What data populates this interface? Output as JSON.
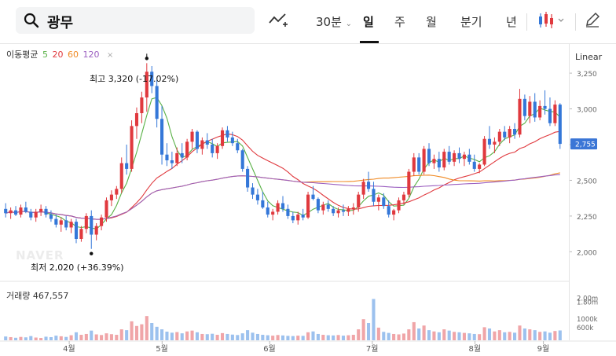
{
  "search": {
    "query": "광무"
  },
  "periods": [
    {
      "label": "30분",
      "has_dropdown": true,
      "active": false
    },
    {
      "label": "일",
      "has_dropdown": false,
      "active": true
    },
    {
      "label": "주",
      "has_dropdown": false,
      "active": false
    },
    {
      "label": "월",
      "has_dropdown": false,
      "active": false
    },
    {
      "label": "분기",
      "has_dropdown": false,
      "active": false
    },
    {
      "label": "년",
      "has_dropdown": false,
      "active": false
    }
  ],
  "toolbar_icons": [
    "search-icon",
    "line-indicator-icon",
    "candlestick-type-icon",
    "chevron-down-icon",
    "pencil-icon"
  ],
  "moving_average": {
    "title": "이동평균",
    "periods": [
      {
        "label": "5",
        "color": "#59b146"
      },
      {
        "label": "20",
        "color": "#e0393e"
      },
      {
        "label": "60",
        "color": "#f08a24"
      },
      {
        "label": "120",
        "color": "#9b5fc0"
      }
    ],
    "close_symbol": "×"
  },
  "scale_mode": "Linear",
  "annotations": {
    "high_label": "최고",
    "high_value": "3,320",
    "high_change": "(-17.02%)",
    "low_label": "최저",
    "low_value": "2,020",
    "low_change": "(+36.39%)"
  },
  "watermark": "NAVER",
  "current_price": "2,755",
  "price_axis_ticks": [
    "3,250",
    "3,000",
    "2,750",
    "2,500",
    "2,250",
    "2,000"
  ],
  "volume": {
    "label": "거래량",
    "value": "467,557",
    "axis_ticks": [
      "2.00m",
      "1.80m",
      "1000k",
      "600k"
    ]
  },
  "x_axis_months": [
    "4월",
    "5월",
    "6월",
    "7월",
    "8월",
    "9월"
  ],
  "colors": {
    "up": "#e0393e",
    "down": "#3477d8",
    "vol_up": "#f0a5a8",
    "vol_down": "#9cc1ee",
    "current_price_bg": "#3b76d6"
  },
  "chart_data": {
    "type": "candlestick",
    "title": "",
    "xlabel": "",
    "ylabel": "",
    "ylim": [
      1870,
      3410
    ],
    "categories": [
      "4월",
      "5월",
      "6월",
      "7월",
      "8월",
      "9월"
    ],
    "ohlc": [
      [
        2300,
        2340,
        2240,
        2270
      ],
      [
        2270,
        2310,
        2230,
        2290
      ],
      [
        2290,
        2320,
        2250,
        2260
      ],
      [
        2260,
        2330,
        2240,
        2310
      ],
      [
        2310,
        2350,
        2270,
        2280
      ],
      [
        2280,
        2300,
        2220,
        2240
      ],
      [
        2240,
        2300,
        2210,
        2280
      ],
      [
        2280,
        2330,
        2250,
        2300
      ],
      [
        2300,
        2320,
        2240,
        2260
      ],
      [
        2260,
        2290,
        2210,
        2230
      ],
      [
        2230,
        2260,
        2170,
        2190
      ],
      [
        2190,
        2240,
        2140,
        2220
      ],
      [
        2220,
        2250,
        2150,
        2170
      ],
      [
        2170,
        2230,
        2130,
        2210
      ],
      [
        2210,
        2230,
        2060,
        2090
      ],
      [
        2090,
        2180,
        2070,
        2160
      ],
      [
        2160,
        2270,
        2130,
        2250
      ],
      [
        2250,
        2290,
        2020,
        2120
      ],
      [
        2120,
        2200,
        2080,
        2180
      ],
      [
        2180,
        2260,
        2150,
        2240
      ],
      [
        2240,
        2380,
        2210,
        2360
      ],
      [
        2360,
        2430,
        2320,
        2400
      ],
      [
        2400,
        2460,
        2370,
        2440
      ],
      [
        2440,
        2660,
        2410,
        2620
      ],
      [
        2620,
        2750,
        2540,
        2580
      ],
      [
        2580,
        2920,
        2560,
        2880
      ],
      [
        2880,
        3010,
        2790,
        2970
      ],
      [
        2970,
        3120,
        2900,
        3080
      ],
      [
        3080,
        3320,
        2980,
        3260
      ],
      [
        3260,
        3300,
        3110,
        3160
      ],
      [
        3160,
        3200,
        2870,
        2930
      ],
      [
        2930,
        3020,
        2610,
        2680
      ],
      [
        2680,
        2760,
        2600,
        2640
      ],
      [
        2640,
        2700,
        2580,
        2620
      ],
      [
        2620,
        2730,
        2600,
        2690
      ],
      [
        2690,
        2760,
        2620,
        2660
      ],
      [
        2660,
        2790,
        2640,
        2770
      ],
      [
        2770,
        2860,
        2720,
        2840
      ],
      [
        2840,
        2850,
        2690,
        2720
      ],
      [
        2720,
        2800,
        2680,
        2780
      ],
      [
        2780,
        2830,
        2720,
        2750
      ],
      [
        2750,
        2790,
        2660,
        2690
      ],
      [
        2690,
        2760,
        2650,
        2740
      ],
      [
        2740,
        2870,
        2720,
        2850
      ],
      [
        2850,
        2880,
        2770,
        2800
      ],
      [
        2800,
        2840,
        2740,
        2760
      ],
      [
        2760,
        2790,
        2690,
        2710
      ],
      [
        2710,
        2720,
        2560,
        2580
      ],
      [
        2580,
        2600,
        2420,
        2450
      ],
      [
        2450,
        2480,
        2370,
        2400
      ],
      [
        2400,
        2440,
        2330,
        2360
      ],
      [
        2360,
        2420,
        2300,
        2310
      ],
      [
        2310,
        2350,
        2240,
        2260
      ],
      [
        2260,
        2300,
        2220,
        2280
      ],
      [
        2280,
        2360,
        2260,
        2340
      ],
      [
        2340,
        2390,
        2280,
        2300
      ],
      [
        2300,
        2330,
        2230,
        2250
      ],
      [
        2250,
        2280,
        2200,
        2220
      ],
      [
        2220,
        2280,
        2190,
        2260
      ],
      [
        2260,
        2300,
        2220,
        2240
      ],
      [
        2240,
        2420,
        2230,
        2400
      ],
      [
        2400,
        2460,
        2360,
        2370
      ],
      [
        2370,
        2380,
        2270,
        2290
      ],
      [
        2290,
        2350,
        2260,
        2330
      ],
      [
        2330,
        2360,
        2280,
        2300
      ],
      [
        2300,
        2320,
        2250,
        2270
      ],
      [
        2270,
        2310,
        2240,
        2290
      ],
      [
        2290,
        2330,
        2250,
        2280
      ],
      [
        2280,
        2320,
        2250,
        2300
      ],
      [
        2300,
        2340,
        2260,
        2310
      ],
      [
        2310,
        2420,
        2280,
        2400
      ],
      [
        2400,
        2510,
        2370,
        2490
      ],
      [
        2490,
        2560,
        2420,
        2440
      ],
      [
        2440,
        2490,
        2320,
        2350
      ],
      [
        2350,
        2400,
        2290,
        2380
      ],
      [
        2380,
        2410,
        2300,
        2320
      ],
      [
        2320,
        2360,
        2240,
        2260
      ],
      [
        2260,
        2300,
        2220,
        2290
      ],
      [
        2290,
        2380,
        2270,
        2360
      ],
      [
        2360,
        2420,
        2330,
        2400
      ],
      [
        2400,
        2580,
        2380,
        2560
      ],
      [
        2560,
        2690,
        2530,
        2660
      ],
      [
        2660,
        2690,
        2540,
        2560
      ],
      [
        2560,
        2740,
        2540,
        2720
      ],
      [
        2720,
        2760,
        2600,
        2620
      ],
      [
        2620,
        2680,
        2580,
        2650
      ],
      [
        2650,
        2700,
        2560,
        2590
      ],
      [
        2590,
        2720,
        2570,
        2700
      ],
      [
        2700,
        2740,
        2610,
        2630
      ],
      [
        2630,
        2710,
        2600,
        2690
      ],
      [
        2690,
        2730,
        2620,
        2650
      ],
      [
        2650,
        2700,
        2600,
        2680
      ],
      [
        2680,
        2720,
        2610,
        2630
      ],
      [
        2630,
        2680,
        2560,
        2580
      ],
      [
        2580,
        2620,
        2550,
        2610
      ],
      [
        2610,
        2810,
        2600,
        2790
      ],
      [
        2790,
        2880,
        2720,
        2750
      ],
      [
        2750,
        2800,
        2690,
        2770
      ],
      [
        2770,
        2860,
        2740,
        2840
      ],
      [
        2840,
        2880,
        2780,
        2800
      ],
      [
        2800,
        2880,
        2760,
        2860
      ],
      [
        2860,
        2900,
        2790,
        2820
      ],
      [
        2820,
        3140,
        2800,
        3070
      ],
      [
        3070,
        3100,
        2920,
        2950
      ],
      [
        2950,
        3090,
        2900,
        3050
      ],
      [
        3050,
        3110,
        2910,
        2940
      ],
      [
        2940,
        3060,
        2920,
        3020
      ],
      [
        3020,
        3130,
        2960,
        3000
      ],
      [
        3000,
        3080,
        2880,
        2900
      ],
      [
        2900,
        3060,
        2880,
        3030
      ],
      [
        3030,
        3040,
        2720,
        2755
      ]
    ],
    "ma_periods": [
      5,
      20,
      60,
      120
    ],
    "volume_ylim": [
      0,
      2200000
    ],
    "volume_values": [
      180000,
      150000,
      120000,
      160000,
      140000,
      200000,
      130000,
      110000,
      170000,
      150000,
      220000,
      190000,
      160000,
      240000,
      380000,
      260000,
      300000,
      460000,
      280000,
      250000,
      330000,
      290000,
      260000,
      520000,
      480000,
      900000,
      680000,
      760000,
      1150000,
      820000,
      640000,
      520000,
      410000,
      360000,
      390000,
      330000,
      420000,
      460000,
      380000,
      300000,
      290000,
      310000,
      260000,
      340000,
      300000,
      270000,
      250000,
      330000,
      480000,
      360000,
      300000,
      260000,
      240000,
      220000,
      250000,
      230000,
      210000,
      200000,
      220000,
      210000,
      380000,
      420000,
      300000,
      260000,
      240000,
      230000,
      250000,
      220000,
      240000,
      260000,
      520000,
      1000000,
      820000,
      1960000,
      600000,
      400000,
      350000,
      300000,
      280000,
      320000,
      520000,
      860000,
      560000,
      700000,
      480000,
      420000,
      380000,
      520000,
      460000,
      400000,
      380000,
      350000,
      330000,
      300000,
      290000,
      620000,
      560000,
      420000,
      480000,
      380000,
      400000,
      360000,
      700000,
      560000,
      520000,
      480000,
      400000,
      420000,
      360000,
      440000,
      467557
    ]
  }
}
